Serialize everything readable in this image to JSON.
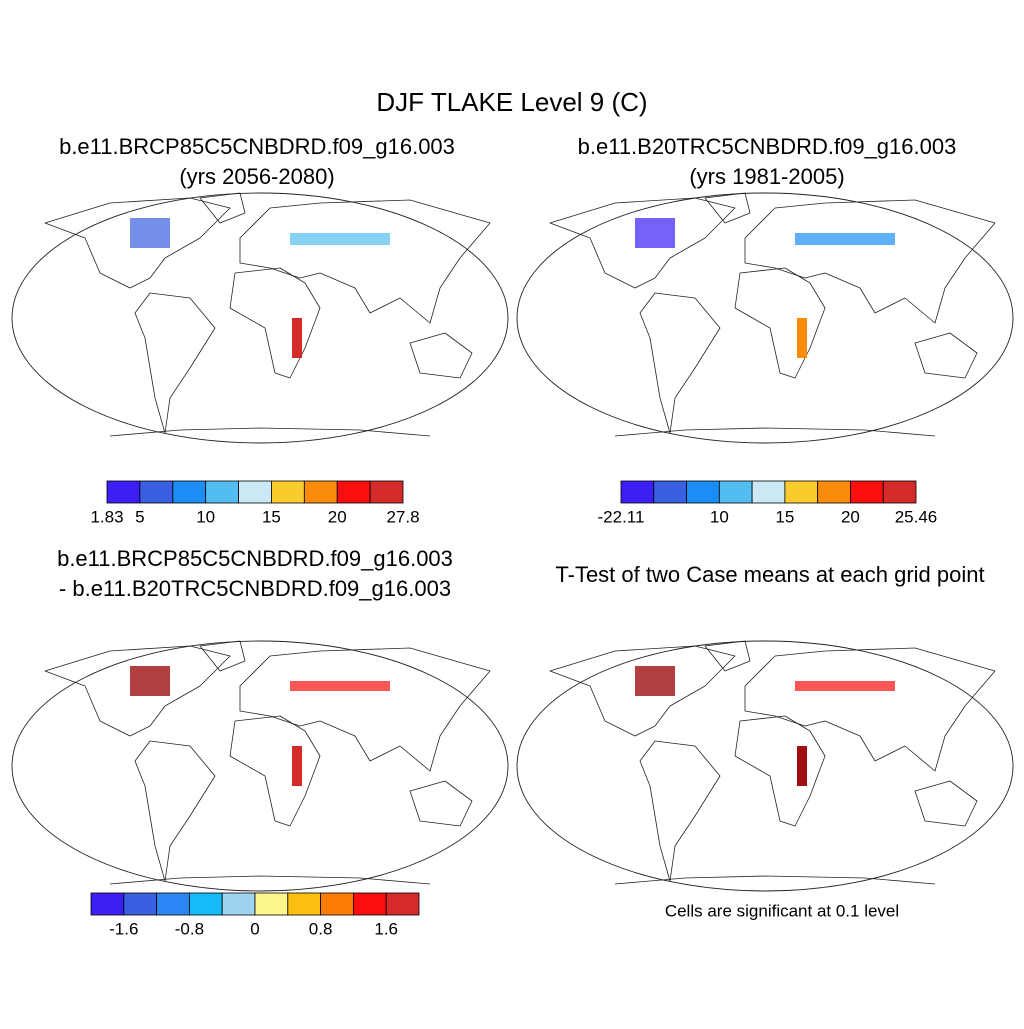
{
  "title": "DJF TLAKE Level 9 (C)",
  "panels": [
    {
      "title": "b.e11.BRCP85C5CNBDRD.f09_g16.003",
      "subtitle": "(yrs 2056-2080)"
    },
    {
      "title": "b.e11.B20TRC5CNBDRD.f09_g16.003",
      "subtitle": "(yrs 1981-2005)"
    },
    {
      "title": "b.e11.BRCP85C5CNBDRD.f09_g16.003",
      "subtitle": "- b.e11.B20TRC5CNBDRD.f09_g16.003"
    },
    {
      "title": "T-Test of two Case means at each grid point"
    }
  ],
  "colorbars": [
    {
      "colors": [
        "#3b1ff5",
        "#3a5fe0",
        "#1a8ef5",
        "#52bdf0",
        "#cce8f6",
        "#f9cc2e",
        "#fb8c0a",
        "#fa0e0e",
        "#d42a2a"
      ],
      "ticks": [
        1.83,
        5,
        10,
        15,
        20,
        27.8
      ]
    },
    {
      "colors": [
        "#3b1ff5",
        "#3a5fe0",
        "#1a8ef5",
        "#52bdf0",
        "#cce8f6",
        "#f9cc2e",
        "#fb8c0a",
        "#fa0e0e",
        "#d42a2a"
      ],
      "ticks": [
        -22.11,
        10,
        15,
        20,
        25.46
      ]
    },
    {
      "colors": [
        "#3b1ff5",
        "#3a5fe0",
        "#2a86f5",
        "#14bbf8",
        "#9fd4f0",
        "#fdf68a",
        "#fbbf12",
        "#fb7d08",
        "#fa0e0e",
        "#d42a2a"
      ],
      "ticks": [
        -1.6,
        -0.8,
        0,
        0.8,
        1.6
      ]
    }
  ],
  "note": "Cells are significant at 0.1 level"
}
